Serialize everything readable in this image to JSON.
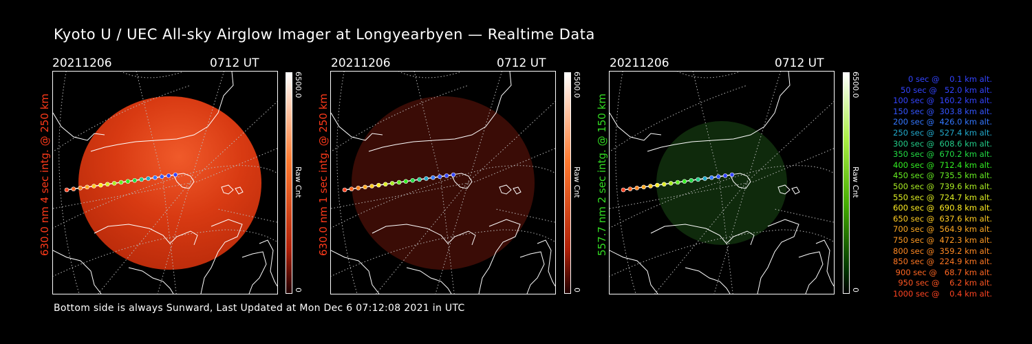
{
  "title": "Kyoto U / UEC All-sky Airglow Imager at Longyearbyen — Realtime Data",
  "footer": "Bottom side is always Sunward, Last Updated at Mon Dec  6 07:12:08 2021 in UTC",
  "panels": [
    {
      "date": "20211206",
      "time": "0712 UT",
      "ylabel": "630.0 nm 4 sec intg. @ 250 km",
      "label_color": "#ff3a1a",
      "colorbar": {
        "max": "6500.0",
        "min": "0",
        "unit": "Raw Cnt",
        "colors": [
          "#ff3a10",
          "#ffffff"
        ]
      }
    },
    {
      "date": "20211206",
      "time": "0712 UT",
      "ylabel": "630.0 nm 1 sec intg. @ 250 km",
      "label_color": "#ff3a1a",
      "colorbar": {
        "max": "6500.0",
        "min": "0",
        "unit": "Raw Cnt",
        "colors": [
          "#ff3a10",
          "#ffffff"
        ]
      }
    },
    {
      "date": "20211206",
      "time": "0712 UT",
      "ylabel": "557.7 nm 2 sec intg. @ 150 km",
      "label_color": "#33dd22",
      "colorbar": {
        "max": "6500.0",
        "min": "0",
        "unit": "Raw Cnt",
        "colors": [
          "#44cc00",
          "#ffffff"
        ]
      }
    }
  ],
  "legend": [
    {
      "text": "   0 sec @    0.1 km alt.",
      "color": "#3344ff"
    },
    {
      "text": "  50 sec @   52.0 km alt.",
      "color": "#3344ff"
    },
    {
      "text": " 100 sec @  160.2 km alt.",
      "color": "#3344ff"
    },
    {
      "text": " 150 sec @  303.8 km alt.",
      "color": "#3355ff"
    },
    {
      "text": " 200 sec @  426.0 km alt.",
      "color": "#3377ff"
    },
    {
      "text": " 250 sec @  527.4 km alt.",
      "color": "#22aacc"
    },
    {
      "text": " 300 sec @  608.6 km alt.",
      "color": "#22cc88"
    },
    {
      "text": " 350 sec @  670.2 km alt.",
      "color": "#22dd44"
    },
    {
      "text": " 400 sec @  712.4 km alt.",
      "color": "#33ee22"
    },
    {
      "text": " 450 sec @  735.5 km alt.",
      "color": "#66ee22"
    },
    {
      "text": " 500 sec @  739.6 km alt.",
      "color": "#aaee22"
    },
    {
      "text": " 550 sec @  724.7 km alt.",
      "color": "#ddee22"
    },
    {
      "text": " 600 sec @  690.8 km alt.",
      "color": "#ffee22"
    },
    {
      "text": " 650 sec @  637.6 km alt.",
      "color": "#ffcc22"
    },
    {
      "text": " 700 sec @  564.9 km alt.",
      "color": "#ffaa22"
    },
    {
      "text": " 750 sec @  472.3 km alt.",
      "color": "#ff9922"
    },
    {
      "text": " 800 sec @  359.2 km alt.",
      "color": "#ff8822"
    },
    {
      "text": " 850 sec @  224.9 km alt.",
      "color": "#ff7722"
    },
    {
      "text": " 900 sec @   68.7 km alt.",
      "color": "#ff6622"
    },
    {
      "text": " 950 sec @    6.2 km alt.",
      "color": "#ff5522"
    },
    {
      "text": "1000 sec @    0.4 km alt.",
      "color": "#ff4422"
    }
  ],
  "track_colors": [
    "#ff4422",
    "#ff6622",
    "#ff8822",
    "#ffaa22",
    "#ffcc22",
    "#ffee22",
    "#ddee22",
    "#aaee22",
    "#66ee22",
    "#33ee22",
    "#22dd44",
    "#22cc88",
    "#22aacc",
    "#3377ff",
    "#3355ff",
    "#3344ff",
    "#3344ff"
  ]
}
